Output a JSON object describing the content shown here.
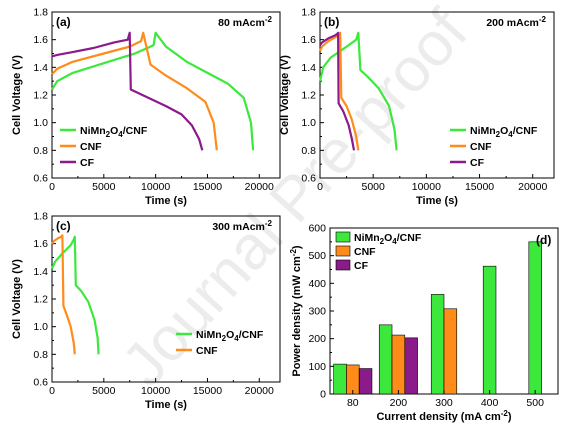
{
  "colors": {
    "NiMn2O4/CNF": "#3be83b",
    "CNF": "#ff8c1a",
    "CF": "#8b1a8b"
  },
  "watermark": "Journal Pre-proof",
  "chart_data": [
    {
      "panel": "(a)",
      "type": "line",
      "condition_sup": "-2",
      "condition": "80 mAcm",
      "xlabel": "Time (s)",
      "ylabel": "Cell Voltage (V)",
      "xlim": [
        0,
        22000
      ],
      "ylim": [
        0.6,
        1.8
      ],
      "xticks": [
        0,
        5000,
        10000,
        15000,
        20000
      ],
      "yticks": [
        0.6,
        0.8,
        1.0,
        1.2,
        1.4,
        1.6,
        1.8
      ],
      "legend": "lower-left",
      "series": [
        {
          "name": "NiMn2O4/CNF",
          "x": [
            0,
            500,
            2000,
            5000,
            8000,
            9800,
            10000,
            11000,
            13000,
            15000,
            17000,
            18500,
            19200,
            19400
          ],
          "y": [
            1.24,
            1.3,
            1.36,
            1.43,
            1.5,
            1.56,
            1.65,
            1.55,
            1.44,
            1.36,
            1.28,
            1.18,
            1.0,
            0.8
          ]
        },
        {
          "name": "CNF",
          "x": [
            0,
            500,
            2000,
            5000,
            7500,
            8600,
            8800,
            9500,
            11000,
            13000,
            14800,
            15600,
            15900
          ],
          "y": [
            1.35,
            1.39,
            1.44,
            1.5,
            1.55,
            1.59,
            1.65,
            1.42,
            1.34,
            1.25,
            1.15,
            1.0,
            0.8
          ]
        },
        {
          "name": "CF",
          "x": [
            0,
            500,
            2000,
            4000,
            6000,
            7300,
            7500,
            7600,
            9000,
            11000,
            12500,
            13500,
            14200,
            14500
          ],
          "y": [
            1.48,
            1.49,
            1.51,
            1.54,
            1.58,
            1.6,
            1.65,
            1.24,
            1.19,
            1.12,
            1.06,
            0.98,
            0.88,
            0.8
          ]
        }
      ]
    },
    {
      "panel": "(b)",
      "type": "line",
      "condition_sup": "-2",
      "condition": "200 mAcm",
      "xlabel": "Time (s)",
      "ylabel": "Cell Voltage (V)",
      "xlim": [
        0,
        22000
      ],
      "ylim": [
        0.6,
        1.8
      ],
      "xticks": [
        0,
        5000,
        10000,
        15000,
        20000
      ],
      "yticks": [
        0.6,
        0.8,
        1.0,
        1.2,
        1.4,
        1.6,
        1.8
      ],
      "legend": "lower-right",
      "series": [
        {
          "name": "NiMn2O4/CNF",
          "x": [
            0,
            300,
            1000,
            2500,
            3400,
            3600,
            3800,
            4500,
            5500,
            6500,
            7000,
            7200
          ],
          "y": [
            1.3,
            1.4,
            1.47,
            1.55,
            1.6,
            1.65,
            1.38,
            1.33,
            1.25,
            1.12,
            0.95,
            0.8
          ]
        },
        {
          "name": "CNF",
          "x": [
            0,
            200,
            800,
            1500,
            1800,
            1900,
            2000,
            2500,
            3000,
            3400,
            3600
          ],
          "y": [
            1.52,
            1.55,
            1.59,
            1.62,
            1.64,
            1.65,
            1.18,
            1.12,
            1.02,
            0.9,
            0.8
          ]
        },
        {
          "name": "CF",
          "x": [
            0,
            200,
            800,
            1400,
            1600,
            1700,
            1750,
            2200,
            2700,
            3000,
            3200
          ],
          "y": [
            1.56,
            1.58,
            1.61,
            1.63,
            1.64,
            1.65,
            1.14,
            1.08,
            0.98,
            0.88,
            0.8
          ]
        }
      ]
    },
    {
      "panel": "(c)",
      "type": "line",
      "condition_sup": "-2",
      "condition": "300 mAcm",
      "xlabel": "Time (s)",
      "ylabel": "Cell Voltage (V)",
      "xlim": [
        0,
        22000
      ],
      "ylim": [
        0.6,
        1.8
      ],
      "xticks": [
        0,
        5000,
        10000,
        15000,
        20000
      ],
      "yticks": [
        0.6,
        0.8,
        1.0,
        1.2,
        1.4,
        1.6,
        1.8
      ],
      "legend": "lower-right",
      "series": [
        {
          "name": "NiMn2O4/CNF",
          "x": [
            0,
            300,
            1000,
            1800,
            2100,
            2200,
            2300,
            2800,
            3500,
            4100,
            4400,
            4500
          ],
          "y": [
            1.42,
            1.47,
            1.53,
            1.59,
            1.63,
            1.65,
            1.3,
            1.26,
            1.18,
            1.05,
            0.92,
            0.8
          ]
        },
        {
          "name": "CNF",
          "x": [
            0,
            200,
            600,
            900,
            1000,
            1100,
            1400,
            1800,
            2100,
            2200
          ],
          "y": [
            1.6,
            1.62,
            1.64,
            1.65,
            1.66,
            1.15,
            1.09,
            1.0,
            0.88,
            0.8
          ]
        }
      ]
    },
    {
      "panel": "(d)",
      "type": "bar",
      "xlabel": "Current density (mA cm",
      "xlabel_sup": "-2",
      "xlabel_end": ")",
      "ylabel": "Power density (mW cm",
      "ylabel_sup": "-2",
      "ylabel_end": ")",
      "categories": [
        "80",
        "200",
        "300",
        "400",
        "500"
      ],
      "ylim": [
        0,
        600
      ],
      "yticks": [
        0,
        100,
        200,
        300,
        400,
        500,
        600
      ],
      "legend": "top-left",
      "series": [
        {
          "name": "NiMn2O4/CNF",
          "values": [
            108,
            250,
            360,
            462,
            550
          ]
        },
        {
          "name": "CNF",
          "values": [
            105,
            213,
            308,
            null,
            null
          ]
        },
        {
          "name": "CF",
          "values": [
            92,
            203,
            null,
            null,
            null
          ]
        }
      ]
    }
  ]
}
